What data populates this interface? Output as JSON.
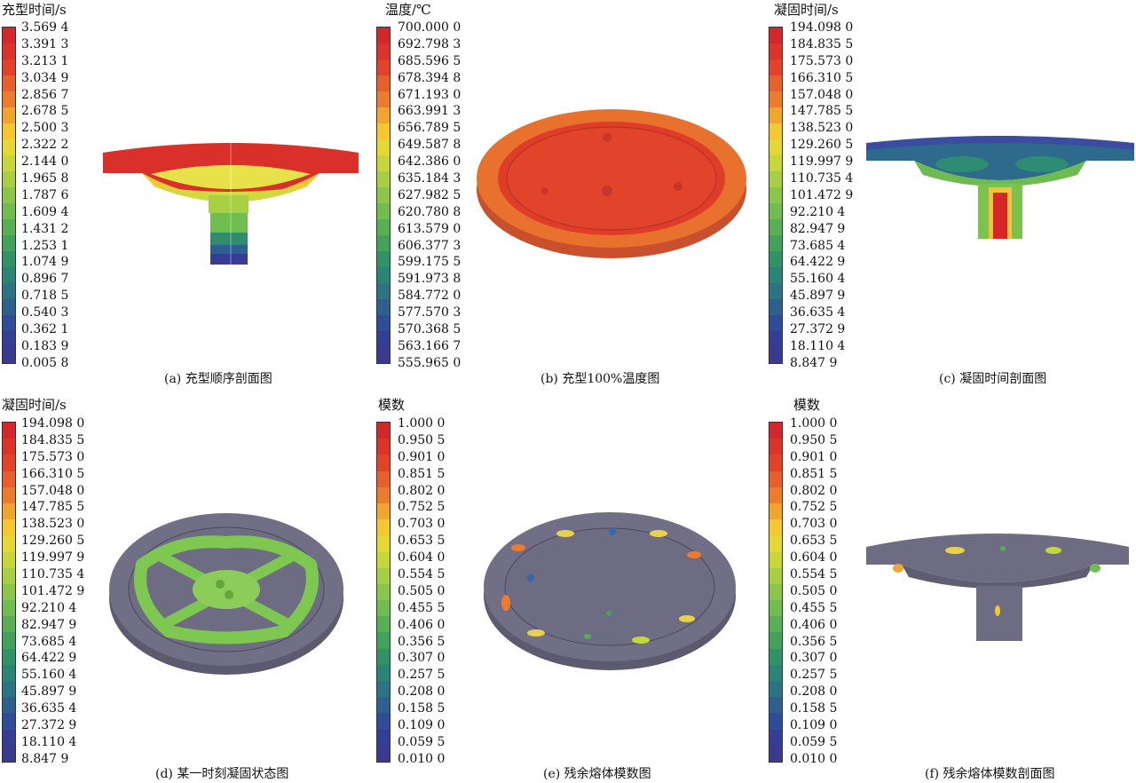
{
  "panels": [
    {
      "id": "a",
      "title": "充型时间/s",
      "caption": "(a) 充型顺序剖面图",
      "ticks": [
        "3.569 4",
        "3.391 3",
        "3.213 1",
        "3.034 9",
        "2.856 7",
        "2.678 5",
        "2.500 3",
        "2.322 2",
        "2.144 0",
        "1.965 8",
        "1.787 6",
        "1.609 4",
        "1.431 2",
        "1.253 1",
        "1.074 9",
        "0.896 7",
        "0.718 5",
        "0.540 3",
        "0.362 1",
        "0.183 9",
        "0.005 8"
      ]
    },
    {
      "id": "b",
      "title": "温度/℃",
      "caption": "(b) 充型100%温度图",
      "ticks": [
        "700.000 0",
        "692.798 3",
        "685.596 5",
        "678.394 8",
        "671.193 0",
        "663.991 3",
        "656.789 5",
        "649.587 8",
        "642.386 0",
        "635.184 3",
        "627.982 5",
        "620.780 8",
        "613.579 0",
        "606.377 3",
        "599.175 5",
        "591.973 8",
        "584.772 0",
        "577.570 3",
        "570.368 5",
        "563.166 7",
        "555.965 0"
      ]
    },
    {
      "id": "c",
      "title": "凝固时间/s",
      "caption": "(c) 凝固时间剖面图",
      "ticks": [
        "194.098 0",
        "184.835 5",
        "175.573 0",
        "166.310 5",
        "157.048 0",
        "147.785 5",
        "138.523 0",
        "129.260 5",
        "119.997 9",
        "110.735 4",
        "101.472 9",
        "92.210 4",
        "82.947 9",
        "73.685 4",
        "64.422 9",
        "55.160 4",
        "45.897 9",
        "36.635 4",
        "27.372 9",
        "18.110 4",
        "8.847 9"
      ]
    },
    {
      "id": "d",
      "title": "凝固时间/s",
      "caption": "(d) 某一时刻凝固状态图",
      "ticks": [
        "194.098 0",
        "184.835 5",
        "175.573 0",
        "166.310 5",
        "157.048 0",
        "147.785 5",
        "138.523 0",
        "129.260 5",
        "119.997 9",
        "110.735 4",
        "101.472 9",
        "92.210 4",
        "82.947 9",
        "73.685 4",
        "64.422 9",
        "55.160 4",
        "45.897 9",
        "36.635 4",
        "27.372 9",
        "18.110 4",
        "8.847 9"
      ]
    },
    {
      "id": "e",
      "title": "模数",
      "caption": "(e) 残余熔体模数图",
      "ticks": [
        "1.000 0",
        "0.950 5",
        "0.901 0",
        "0.851 5",
        "0.802 0",
        "0.752 5",
        "0.703 0",
        "0.653 5",
        "0.604 0",
        "0.554 5",
        "0.505 0",
        "0.455 5",
        "0.406 0",
        "0.356 5",
        "0.307 0",
        "0.257 5",
        "0.208 0",
        "0.158 5",
        "0.109 0",
        "0.059 5",
        "0.010 0"
      ]
    },
    {
      "id": "f",
      "title": "模数",
      "caption": "(f) 残余熔体模数剖面图",
      "ticks": [
        "1.000 0",
        "0.950 5",
        "0.901 0",
        "0.851 5",
        "0.802 0",
        "0.752 5",
        "0.703 0",
        "0.653 5",
        "0.604 0",
        "0.554 5",
        "0.505 0",
        "0.455 5",
        "0.406 0",
        "0.356 5",
        "0.307 0",
        "0.257 5",
        "0.208 0",
        "0.158 5",
        "0.109 0",
        "0.059 5",
        "0.010 0"
      ]
    }
  ],
  "colormap": [
    "#d7262b",
    "#dc3228",
    "#e34228",
    "#e7602a",
    "#ec7c2b",
    "#f1a52c",
    "#f6c72f",
    "#e4d833",
    "#c6d73a",
    "#a7cf42",
    "#8ac64a",
    "#6fbe4f",
    "#57b053",
    "#43a25a",
    "#2f9367",
    "#2a8478",
    "#2c7384",
    "#2d608f",
    "#2f4c98",
    "#333f97",
    "#3a3a8f"
  ]
}
